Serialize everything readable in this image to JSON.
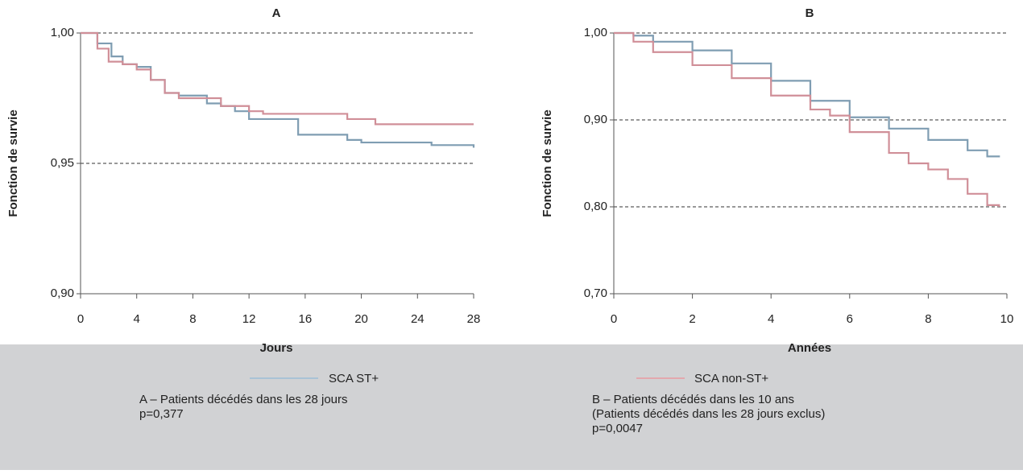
{
  "chart_data": [
    {
      "type": "line",
      "step": true,
      "title": "A",
      "xlabel": "Jours",
      "ylabel": "Fonction de survie",
      "xlim": [
        0,
        28
      ],
      "xticks": [
        0,
        4,
        8,
        12,
        16,
        20,
        24,
        28
      ],
      "ylim": [
        0.9,
        1.0
      ],
      "yticks": [
        {
          "value": 0.9,
          "label": "0,90"
        },
        {
          "value": 0.95,
          "label": "0,95"
        },
        {
          "value": 1.0,
          "label": "1,00"
        }
      ],
      "grid": true,
      "series": [
        {
          "color": "#7f9db2",
          "x": [
            0,
            1.2,
            2.2,
            3,
            4,
            5,
            6,
            7,
            9,
            10,
            11,
            12,
            15.5,
            19,
            20,
            25,
            28
          ],
          "values": [
            1.0,
            0.996,
            0.991,
            0.988,
            0.987,
            0.982,
            0.977,
            0.976,
            0.973,
            0.972,
            0.97,
            0.967,
            0.961,
            0.959,
            0.958,
            0.957,
            0.956
          ]
        },
        {
          "color": "#d08f98",
          "x": [
            0,
            1.2,
            2,
            3,
            4,
            5,
            6,
            7,
            10,
            12,
            13,
            19,
            21,
            28
          ],
          "values": [
            1.0,
            0.994,
            0.989,
            0.988,
            0.986,
            0.982,
            0.977,
            0.975,
            0.972,
            0.97,
            0.969,
            0.967,
            0.965,
            0.965
          ]
        }
      ]
    },
    {
      "type": "line",
      "step": true,
      "title": "B",
      "xlabel": "Années",
      "ylabel": "Fonction de survie",
      "xlim": [
        0,
        10
      ],
      "xticks": [
        0,
        2,
        4,
        6,
        8,
        10
      ],
      "ylim": [
        0.7,
        1.0
      ],
      "yticks": [
        {
          "value": 0.7,
          "label": "0,70"
        },
        {
          "value": 0.8,
          "label": "0,80"
        },
        {
          "value": 0.9,
          "label": "0,90"
        },
        {
          "value": 1.0,
          "label": "1,00"
        }
      ],
      "grid": true,
      "series": [
        {
          "color": "#7f9db2",
          "x": [
            0,
            0.5,
            1,
            2,
            3,
            4,
            5,
            6,
            7,
            8,
            9,
            9.5,
            9.8
          ],
          "values": [
            1.0,
            0.997,
            0.99,
            0.98,
            0.965,
            0.945,
            0.922,
            0.903,
            0.89,
            0.877,
            0.865,
            0.858,
            0.857
          ]
        },
        {
          "color": "#d08f98",
          "x": [
            0,
            0.5,
            1,
            2,
            3,
            4,
            5,
            5.5,
            6,
            7,
            7.5,
            8,
            8.5,
            9,
            9.5,
            9.8
          ],
          "values": [
            1.0,
            0.99,
            0.978,
            0.963,
            0.948,
            0.928,
            0.912,
            0.905,
            0.886,
            0.862,
            0.85,
            0.843,
            0.832,
            0.815,
            0.802,
            0.8
          ]
        }
      ]
    }
  ],
  "legend": [
    {
      "name": "SCA ST+",
      "color": "#a9c3d6"
    },
    {
      "name": "SCA non-ST+",
      "color": "#e3a8ae"
    }
  ],
  "notes": [
    [
      "A – Patients décédés dans les 28 jours",
      "p=0,377"
    ],
    [
      "B – Patients décédés dans les 10 ans",
      "(Patients décédés dans les 28 jours exclus)",
      "p=0,0047"
    ]
  ]
}
